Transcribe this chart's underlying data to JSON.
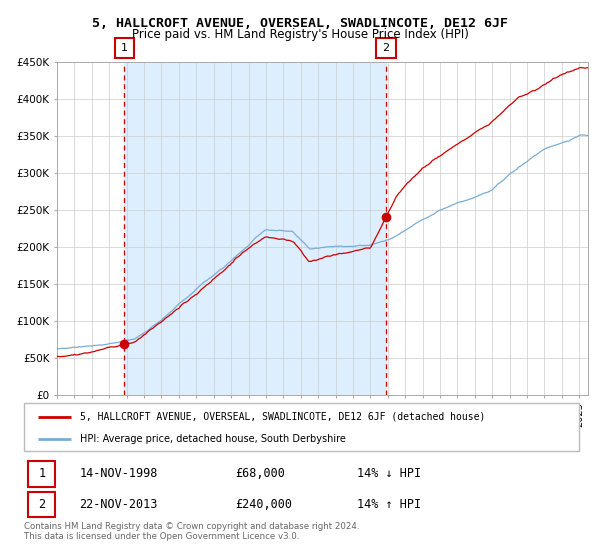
{
  "title": "5, HALLCROFT AVENUE, OVERSEAL, SWADLINCOTE, DE12 6JF",
  "subtitle": "Price paid vs. HM Land Registry's House Price Index (HPI)",
  "sale1_price": 68000,
  "sale1_year": 1998.87,
  "sale2_price": 240000,
  "sale2_year": 2013.89,
  "legend_line1": "5, HALLCROFT AVENUE, OVERSEAL, SWADLINCOTE, DE12 6JF (detached house)",
  "legend_line2": "HPI: Average price, detached house, South Derbyshire",
  "table_row1_label": "1",
  "table_row1_date": "14-NOV-1998",
  "table_row1_price": "£68,000",
  "table_row1_hpi": "14% ↓ HPI",
  "table_row2_label": "2",
  "table_row2_date": "22-NOV-2013",
  "table_row2_price": "£240,000",
  "table_row2_hpi": "14% ↑ HPI",
  "footnote": "Contains HM Land Registry data © Crown copyright and database right 2024.\nThis data is licensed under the Open Government Licence v3.0.",
  "red_color": "#cc0000",
  "blue_color": "#7aadd4",
  "bg_shaded": "#ddeeff",
  "xlim_start": 1995.0,
  "xlim_end": 2025.5,
  "ylim_bottom": 0,
  "ylim_top": 450000,
  "yticks": [
    0,
    50000,
    100000,
    150000,
    200000,
    250000,
    300000,
    350000,
    400000,
    450000
  ],
  "yticklabels": [
    "£0",
    "£50K",
    "£100K",
    "£150K",
    "£200K",
    "£250K",
    "£300K",
    "£350K",
    "£400K",
    "£450K"
  ]
}
